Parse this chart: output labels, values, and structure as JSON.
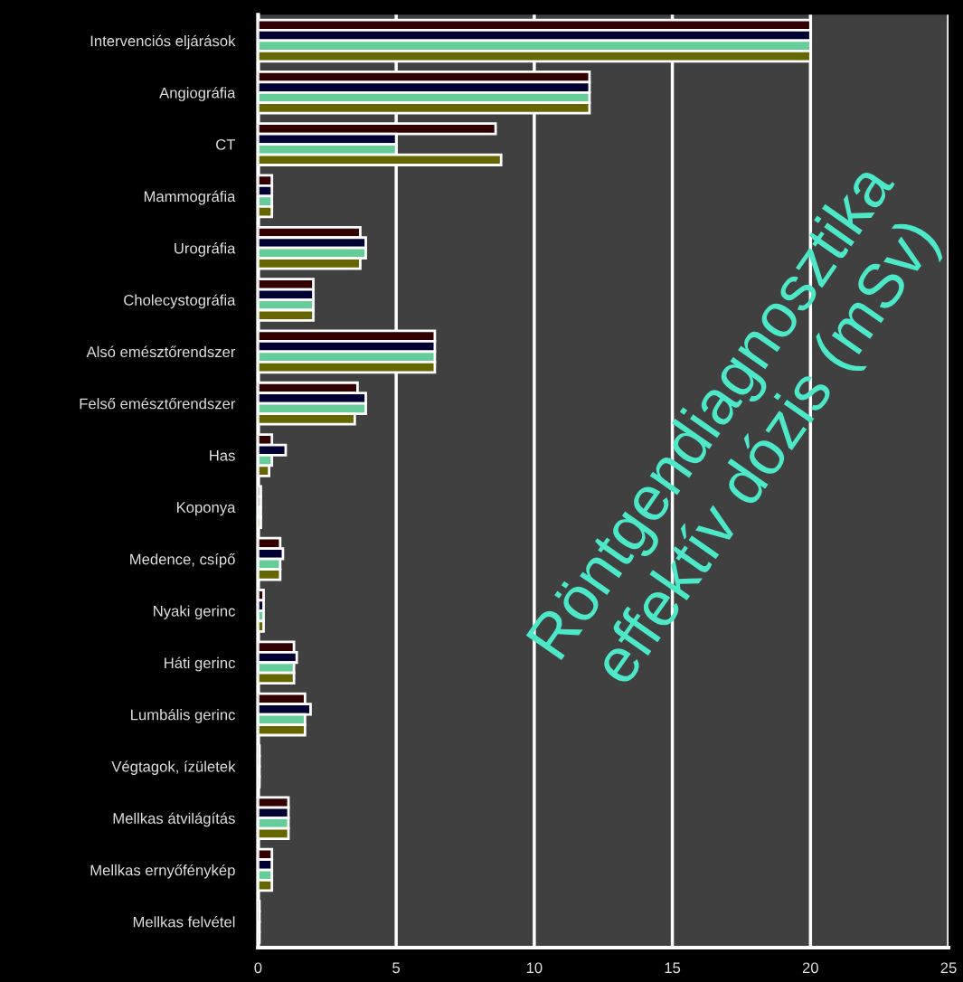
{
  "chart_data": {
    "type": "bar",
    "orientation": "horizontal",
    "annotations": [
      "Röntgendiagnosztika\neffektív dózis (mSv)"
    ],
    "categories": [
      "Intervenciós eljárások",
      "Angiográfia",
      "CT",
      "Mammográfia",
      "Urográfia",
      "Cholecystográfia",
      "Alsó emésztőrendszer",
      "Felső emésztőrendszer",
      "Has",
      "Koponya",
      "Medence, csípő",
      "Nyaki gerinc",
      "Háti gerinc",
      "Lumbális gerinc",
      "Végtagok, ízületek",
      "Mellkas átvilágítás",
      "Mellkas ernyőfénykép",
      "Mellkas felvétel"
    ],
    "series": [
      {
        "color": "#330000",
        "values": [
          20,
          12,
          8.6,
          0.5,
          3.7,
          2,
          6.4,
          3.6,
          0.5,
          0.1,
          0.8,
          0.2,
          1.3,
          1.7,
          0.05,
          1.1,
          0.5,
          0.05
        ]
      },
      {
        "color": "#000033",
        "values": [
          20,
          12,
          5,
          0.5,
          3.9,
          2,
          6.4,
          3.9,
          1,
          0.1,
          0.9,
          0.2,
          1.4,
          1.9,
          0.05,
          1.1,
          0.5,
          0.05
        ]
      },
      {
        "color": "#66cc99",
        "values": [
          20,
          12,
          5,
          0.5,
          3.9,
          2,
          6.4,
          3.9,
          0.5,
          0.1,
          0.8,
          0.2,
          1.3,
          1.7,
          0.05,
          1.1,
          0.5,
          0.05
        ]
      },
      {
        "color": "#666600",
        "values": [
          20,
          12,
          8.8,
          0.5,
          3.7,
          2,
          6.4,
          3.5,
          0.4,
          0.1,
          0.8,
          0.2,
          1.3,
          1.7,
          0.05,
          1.1,
          0.5,
          0.05
        ]
      }
    ],
    "xlim": [
      0,
      25
    ],
    "xticks": [
      0,
      5,
      10,
      15,
      20,
      25
    ],
    "grid": "x"
  }
}
